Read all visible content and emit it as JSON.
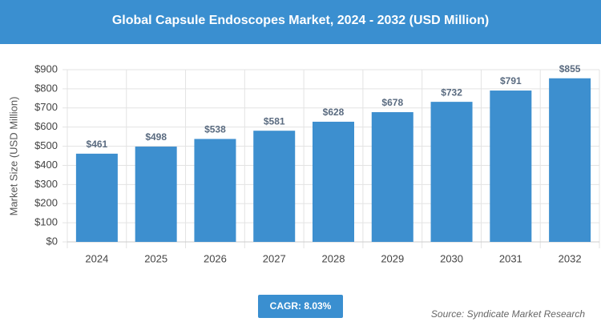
{
  "chart_data": {
    "type": "bar",
    "title": "Global Capsule Endoscopes Market, 2024 - 2032 (USD Million)",
    "y_label": "Market Size (USD Million)",
    "categories": [
      "2024",
      "2025",
      "2026",
      "2027",
      "2028",
      "2029",
      "2030",
      "2031",
      "2032"
    ],
    "values": [
      461,
      498,
      538,
      581,
      628,
      678,
      732,
      791,
      855
    ],
    "value_labels": [
      "$461",
      "$498",
      "$538",
      "$581",
      "$628",
      "$678",
      "$732",
      "$791",
      "$855"
    ],
    "color": "#3d8fcf",
    "ylim": [
      0,
      900
    ],
    "yticks": [
      {
        "value": 0,
        "label": "$0"
      },
      {
        "value": 100,
        "label": "$100"
      },
      {
        "value": 200,
        "label": "$200"
      },
      {
        "value": 300,
        "label": "$300"
      },
      {
        "value": 400,
        "label": "$400"
      },
      {
        "value": 500,
        "label": "$500"
      },
      {
        "value": 600,
        "label": "$600"
      },
      {
        "value": 700,
        "label": "$700"
      },
      {
        "value": 800,
        "label": "$800"
      },
      {
        "value": 900,
        "label": "$900"
      }
    ],
    "grid": true,
    "annotations": {
      "cagr": "CAGR: 8.03%",
      "source": "Source: Syndicate Market Research"
    }
  }
}
